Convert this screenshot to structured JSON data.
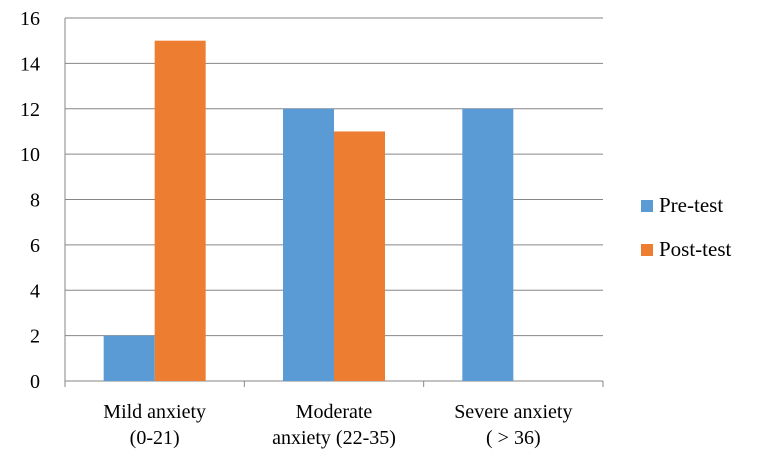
{
  "chart_data": {
    "type": "bar",
    "categories": [
      [
        "Mild anxiety",
        "(0-21)"
      ],
      [
        "Moderate",
        "anxiety (22-35)"
      ],
      [
        "Severe anxiety",
        "( > 36)"
      ]
    ],
    "series": [
      {
        "name": "Pre-test",
        "values": [
          2,
          12,
          12
        ],
        "color": "#5b9bd5"
      },
      {
        "name": "Post-test",
        "values": [
          15,
          11,
          0
        ],
        "color": "#ed7d31"
      }
    ],
    "ylim": [
      0,
      16
    ],
    "yticks": [
      0,
      2,
      4,
      6,
      8,
      10,
      12,
      14,
      16
    ],
    "grid": true,
    "legend": "right",
    "title": "",
    "xlabel": "",
    "ylabel": ""
  }
}
